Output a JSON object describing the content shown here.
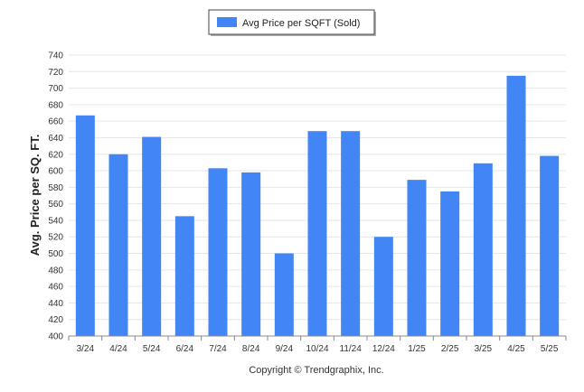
{
  "chart_data": {
    "type": "bar",
    "categories": [
      "3/24",
      "4/24",
      "5/24",
      "6/24",
      "7/24",
      "8/24",
      "9/24",
      "10/24",
      "11/24",
      "12/24",
      "1/25",
      "2/25",
      "3/25",
      "4/25",
      "5/25"
    ],
    "series": [
      {
        "name": "Avg Price per SQFT (Sold)",
        "values": [
          667,
          620,
          641,
          545,
          603,
          598,
          500,
          648,
          648,
          520,
          589,
          575,
          609,
          715,
          618
        ]
      }
    ],
    "ylabel": "Avg. Price per SQ. FT.",
    "xlabel": "",
    "ylim": [
      400,
      740
    ],
    "yticks": [
      400,
      420,
      440,
      460,
      480,
      500,
      520,
      540,
      560,
      580,
      600,
      620,
      640,
      660,
      680,
      700,
      720,
      740
    ],
    "grid": true,
    "legend_position": "top-center",
    "bar_color": "#4285f4"
  },
  "footer": {
    "copyright": "Copyright © Trendgraphix, Inc."
  }
}
